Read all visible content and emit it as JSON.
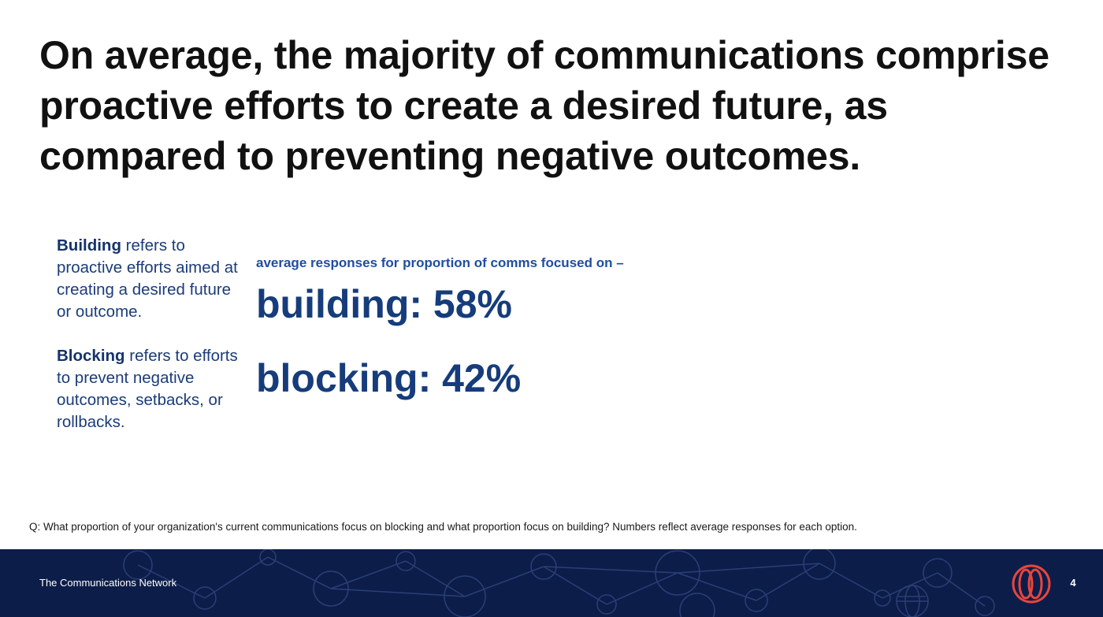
{
  "slide": {
    "title": "On average, the majority of communications comprise proactive efforts to create a desired future, as compared to preventing negative outcomes."
  },
  "definitions": {
    "building": {
      "term": "Building",
      "text": " refers to proactive efforts aimed at creating a desired future or outcome."
    },
    "blocking": {
      "term": "Blocking",
      "text": " refers to efforts to prevent negative outcomes, setbacks, or rollbacks."
    }
  },
  "stats": {
    "label": "average responses for proportion of comms focused on –",
    "building": "building: 58%",
    "blocking": "blocking: 42%"
  },
  "question": "Q: What proportion of your organization's current communications focus on blocking and what proportion focus on building? Numbers reflect average responses for each option.",
  "footer": {
    "org_name": "The Communications Network",
    "page_number": "4",
    "logo_icon": "circles-logo-icon",
    "background_color": "#0c1d4a",
    "logo_color": "#e8453c"
  },
  "colors": {
    "accent": "#163c7b",
    "label": "#1f4ea0"
  }
}
